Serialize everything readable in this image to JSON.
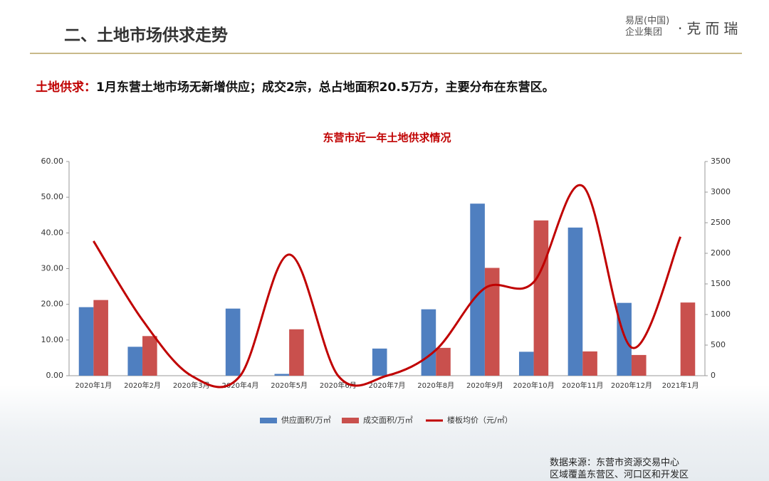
{
  "header": {
    "title": "二、土地市场供求走势",
    "logo_line1": "易居(中国)",
    "logo_line2": "企业集团",
    "brand": "·克而瑞"
  },
  "summary": {
    "label": "土地供求：",
    "text": "1月东营土地市场无新增供应；成交2宗，总占地面积20.5万方，主要分布在东营区。"
  },
  "chart_data": {
    "type": "bar-line",
    "title": "东营市近一年土地供求情况",
    "categories": [
      "2020年1月",
      "2020年2月",
      "2020年3月",
      "2020年4月",
      "2020年5月",
      "2020年6月",
      "2020年7月",
      "2020年8月",
      "2020年9月",
      "2020年10月",
      "2020年11月",
      "2020年12月",
      "2021年1月"
    ],
    "series": [
      {
        "name": "供应面积/万㎡",
        "color": "#4f7fc0",
        "type": "bar",
        "values": [
          19.2,
          8.1,
          0,
          18.8,
          0.5,
          0,
          7.6,
          18.6,
          48.2,
          6.7,
          41.5,
          20.4,
          0
        ]
      },
      {
        "name": "成交面积/万㎡",
        "color": "#c9504d",
        "type": "bar",
        "values": [
          21.2,
          11.1,
          0,
          0,
          13.0,
          0,
          0,
          7.8,
          30.2,
          43.5,
          6.8,
          5.8,
          20.5
        ]
      },
      {
        "name": "楼板均价（元/㎡）",
        "color": "#c00000",
        "type": "line",
        "axis": "y2",
        "values": [
          2200,
          910,
          0,
          0,
          1980,
          0,
          0,
          420,
          1430,
          1530,
          3100,
          460,
          2270
        ]
      }
    ],
    "ylim": [
      0,
      60
    ],
    "yticks": [
      {
        "value": 0,
        "label": "0.00"
      },
      {
        "value": 10,
        "label": "10.00"
      },
      {
        "value": 20,
        "label": "20.00"
      },
      {
        "value": 30,
        "label": "30.00"
      },
      {
        "value": 40,
        "label": "40.00"
      },
      {
        "value": 50,
        "label": "50.00"
      },
      {
        "value": 60,
        "label": "60.00"
      }
    ],
    "y2lim": [
      0,
      3500
    ],
    "y2ticks": [
      0,
      500,
      1000,
      1500,
      2000,
      2500,
      3000,
      3500
    ],
    "legend": "bottom"
  },
  "source": [
    "数据来源：东营市资源交易中心",
    "区域覆盖东营区、河口区和开发区"
  ]
}
